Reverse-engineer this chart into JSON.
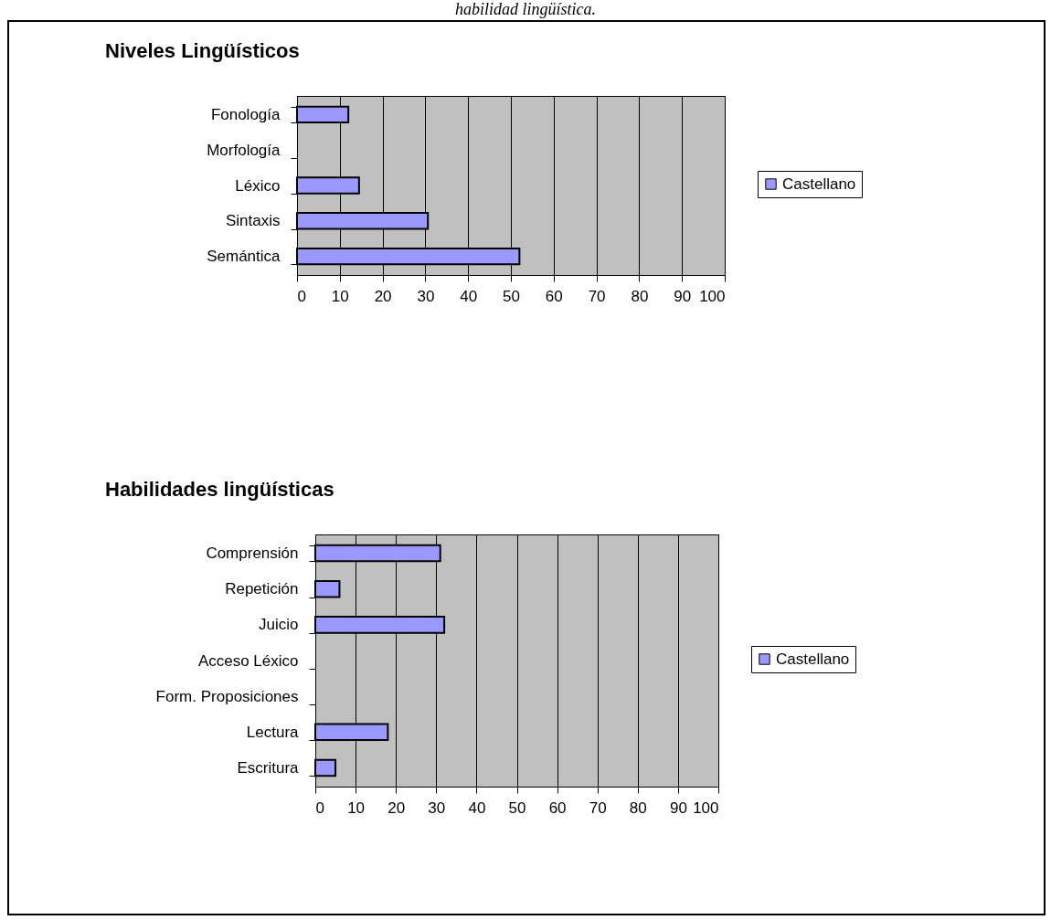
{
  "chart_data": [
    {
      "type": "bar",
      "orientation": "horizontal",
      "title": "Niveles Lingüísticos",
      "annotations": [
        "habilidad lingüística."
      ],
      "categories": [
        "Fonología",
        "Morfología",
        "Léxico",
        "Sintaxis",
        "Semántica"
      ],
      "series": [
        {
          "name": "Castellano",
          "color": "#9999ff",
          "values": [
            12,
            0,
            14.5,
            30.6,
            52
          ]
        }
      ],
      "xlim": [
        0,
        100
      ],
      "xticks": [
        0,
        10,
        20,
        30,
        40,
        50,
        60,
        70,
        80,
        90,
        100
      ],
      "grid": "x",
      "legend": "right"
    },
    {
      "type": "bar",
      "orientation": "horizontal",
      "title": "Habilidades lingüísticas",
      "categories": [
        "Comprensión",
        "Repetición",
        "Juicio",
        "Acceso Léxico",
        "Form. Proposiciones",
        "Lectura",
        "Escritura"
      ],
      "series": [
        {
          "name": "Castellano",
          "color": "#9999ff",
          "values": [
            31,
            6,
            32,
            0,
            0,
            18,
            5
          ]
        }
      ],
      "xlim": [
        0,
        100
      ],
      "xticks": [
        0,
        10,
        20,
        30,
        40,
        50,
        60,
        70,
        80,
        90,
        100
      ],
      "grid": "x",
      "legend": "right"
    }
  ]
}
